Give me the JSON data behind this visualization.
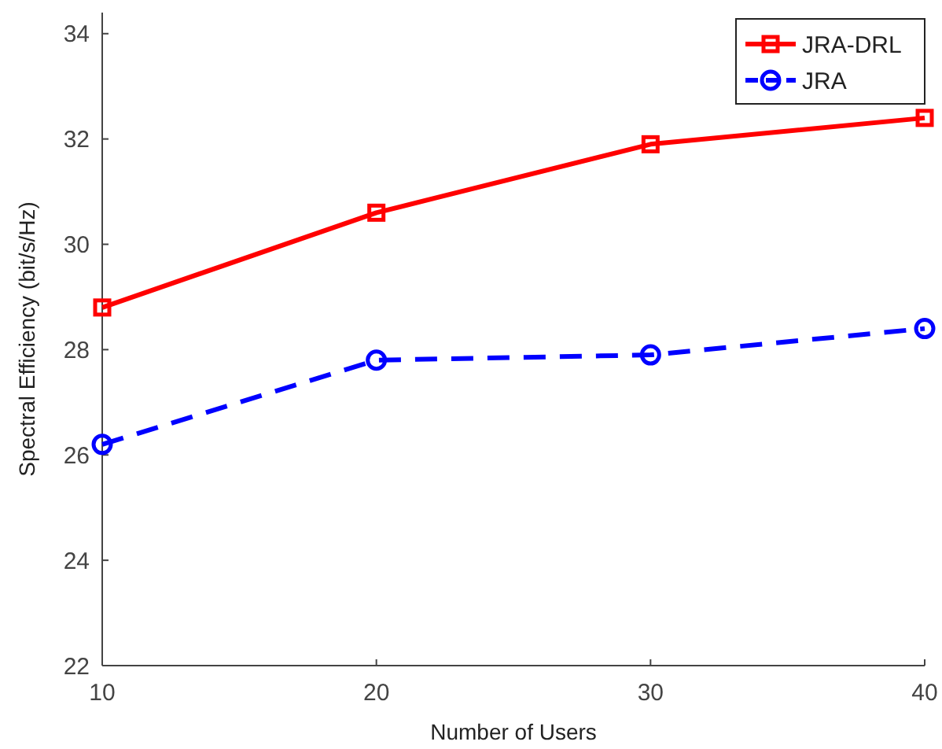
{
  "chart_data": {
    "type": "line",
    "xlabel": "Number of Users",
    "ylabel": "Spectral Efficiency (bit/s/Hz)",
    "x": [
      10,
      20,
      30,
      40
    ],
    "xlim": [
      10,
      40
    ],
    "xticks": [
      10,
      20,
      30,
      40
    ],
    "ylim": [
      22,
      34.4
    ],
    "yticks": [
      22,
      24,
      26,
      28,
      30,
      32,
      34
    ],
    "grid": false,
    "legend": "top right",
    "series": [
      {
        "name": "JRA-DRL",
        "color": "#ff0000",
        "values": [
          28.8,
          30.6,
          31.9,
          32.4
        ],
        "marker": "square",
        "line_style": "solid"
      },
      {
        "name": "JRA",
        "color": "#0000ff",
        "values": [
          26.2,
          27.8,
          27.9,
          28.4
        ],
        "marker": "circle",
        "line_style": "dashed"
      }
    ]
  }
}
